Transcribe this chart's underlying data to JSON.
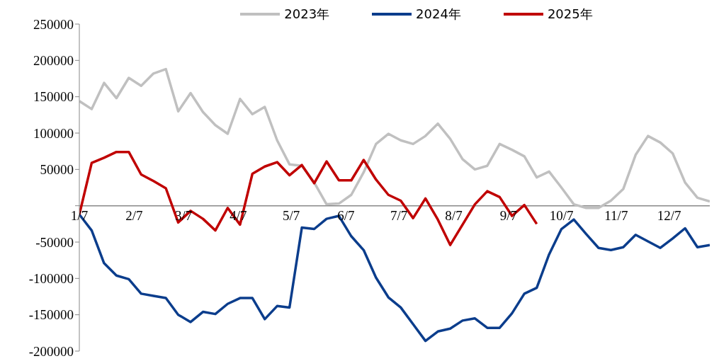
{
  "chart_data": {
    "type": "line",
    "x": [
      "--01-07",
      "--01-14",
      "--01-21",
      "--01-28",
      "--02-04",
      "--02-11",
      "--02-18",
      "--02-25",
      "--03-04",
      "--03-11",
      "--03-18",
      "--03-25",
      "--04-01",
      "--04-08",
      "--04-15",
      "--04-22",
      "--04-29",
      "--05-06",
      "--05-13",
      "--05-20",
      "--05-27",
      "--06-03",
      "--06-10",
      "--06-17",
      "--06-24",
      "--07-01",
      "--07-08",
      "--07-15",
      "--07-22",
      "--07-29",
      "--08-05",
      "--08-12",
      "--08-19",
      "--08-26",
      "--09-02",
      "--09-09",
      "--09-16",
      "--09-23",
      "--09-30",
      "--10-07",
      "--10-14",
      "--10-21",
      "--10-28",
      "--11-04",
      "--11-11",
      "--11-18",
      "--11-25",
      "--12-02",
      "--12-09",
      "--12-16",
      "--12-23",
      "--12-30"
    ],
    "series": [
      {
        "name": "2023年",
        "color": "#c0c0c0",
        "values": [
          144000,
          133000,
          169000,
          148000,
          176000,
          165000,
          182000,
          188000,
          130000,
          155000,
          129000,
          111000,
          99000,
          147000,
          126000,
          136000,
          90000,
          57000,
          55000,
          32000,
          2000,
          3000,
          15000,
          46000,
          85000,
          99000,
          90000,
          85000,
          96000,
          113000,
          92000,
          64000,
          50000,
          55000,
          85000,
          77000,
          68000,
          39000,
          47000,
          25000,
          2000,
          -3000,
          -3000,
          7000,
          23000,
          70000,
          96000,
          87000,
          72000,
          32000,
          11000,
          6000
        ]
      },
      {
        "name": "2024年",
        "color": "#0b3d8c",
        "values": [
          -12000,
          -34000,
          -79000,
          -96000,
          -101000,
          -121000,
          -124000,
          -127000,
          -150000,
          -160000,
          -146000,
          -149000,
          -135000,
          -127000,
          -127000,
          -156000,
          -138000,
          -140000,
          -30000,
          -32000,
          -18000,
          -14000,
          -42000,
          -61000,
          -99000,
          -126000,
          -140000,
          -163000,
          -186000,
          -173000,
          -169000,
          -158000,
          -155000,
          -168000,
          -168000,
          -148000,
          -121000,
          -113000,
          -67000,
          -32000,
          -19000,
          -39000,
          -58000,
          -61000,
          -57000,
          -40000,
          -49000,
          -58000,
          -45000,
          -31000,
          -57000,
          -54000
        ]
      },
      {
        "name": "2025年",
        "color": "#c00000",
        "values": [
          -12000,
          59000,
          66000,
          74000,
          74000,
          43000,
          34000,
          24000,
          -23000,
          -7000,
          -18000,
          -34000,
          -3000,
          -26000,
          44000,
          54000,
          60000,
          42000,
          56000,
          31000,
          61000,
          35000,
          35000,
          63000,
          36000,
          15000,
          7000,
          -17000,
          10000,
          -19000,
          -54000,
          -26000,
          2000,
          20000,
          12000,
          -14000,
          1000,
          -25000,
          null,
          null,
          null,
          null,
          null,
          null,
          null,
          null,
          null,
          null,
          null,
          null,
          null,
          null
        ]
      }
    ],
    "xlim": [
      "--01-07",
      "--12-30"
    ],
    "xticks": [
      {
        "value": "--01-07",
        "label": "1/7"
      },
      {
        "value": "--02-07",
        "label": "2/7"
      },
      {
        "value": "--03-07",
        "label": "3/7"
      },
      {
        "value": "--04-07",
        "label": "4/7"
      },
      {
        "value": "--05-07",
        "label": "5/7"
      },
      {
        "value": "--06-07",
        "label": "6/7"
      },
      {
        "value": "--07-07",
        "label": "7/7"
      },
      {
        "value": "--08-07",
        "label": "8/7"
      },
      {
        "value": "--09-07",
        "label": "9/7"
      },
      {
        "value": "--10-07",
        "label": "10/7"
      },
      {
        "value": "--11-07",
        "label": "11/7"
      },
      {
        "value": "--12-07",
        "label": "12/7"
      }
    ],
    "ylim": [
      -200000,
      250000
    ],
    "yticks": [
      -200000,
      -150000,
      -100000,
      -50000,
      {
        "value": 0,
        "label": null
      },
      50000,
      100000,
      150000,
      200000,
      250000
    ],
    "legend": "top",
    "grid": false,
    "marker": "none",
    "line_style": "solid"
  }
}
